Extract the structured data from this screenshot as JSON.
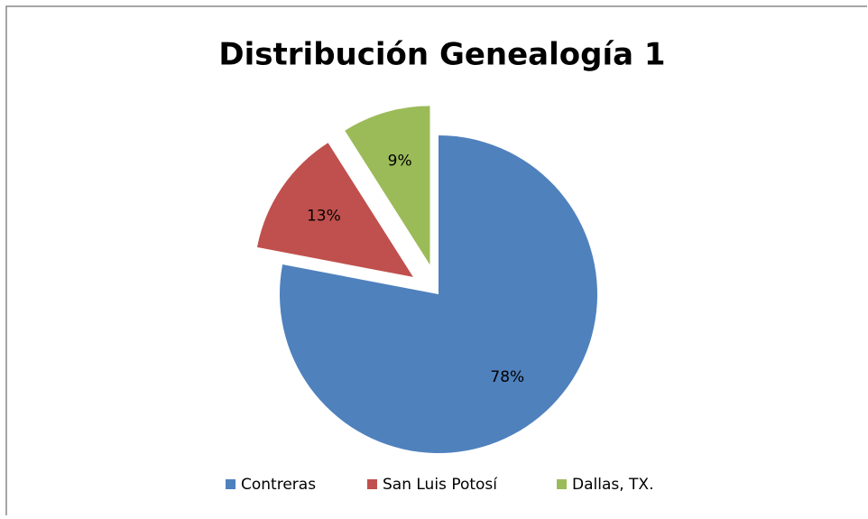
{
  "chart_data": {
    "type": "pie",
    "title": "Distribución Genealogía 1",
    "categories": [
      "Contreras",
      "San Luis Potosí",
      "Dallas, TX."
    ],
    "values": [
      78,
      13,
      9
    ],
    "value_labels": [
      "78%",
      "13%",
      "9%"
    ],
    "colors": [
      "#4f81bd",
      "#c0504d",
      "#9bbb59"
    ]
  }
}
